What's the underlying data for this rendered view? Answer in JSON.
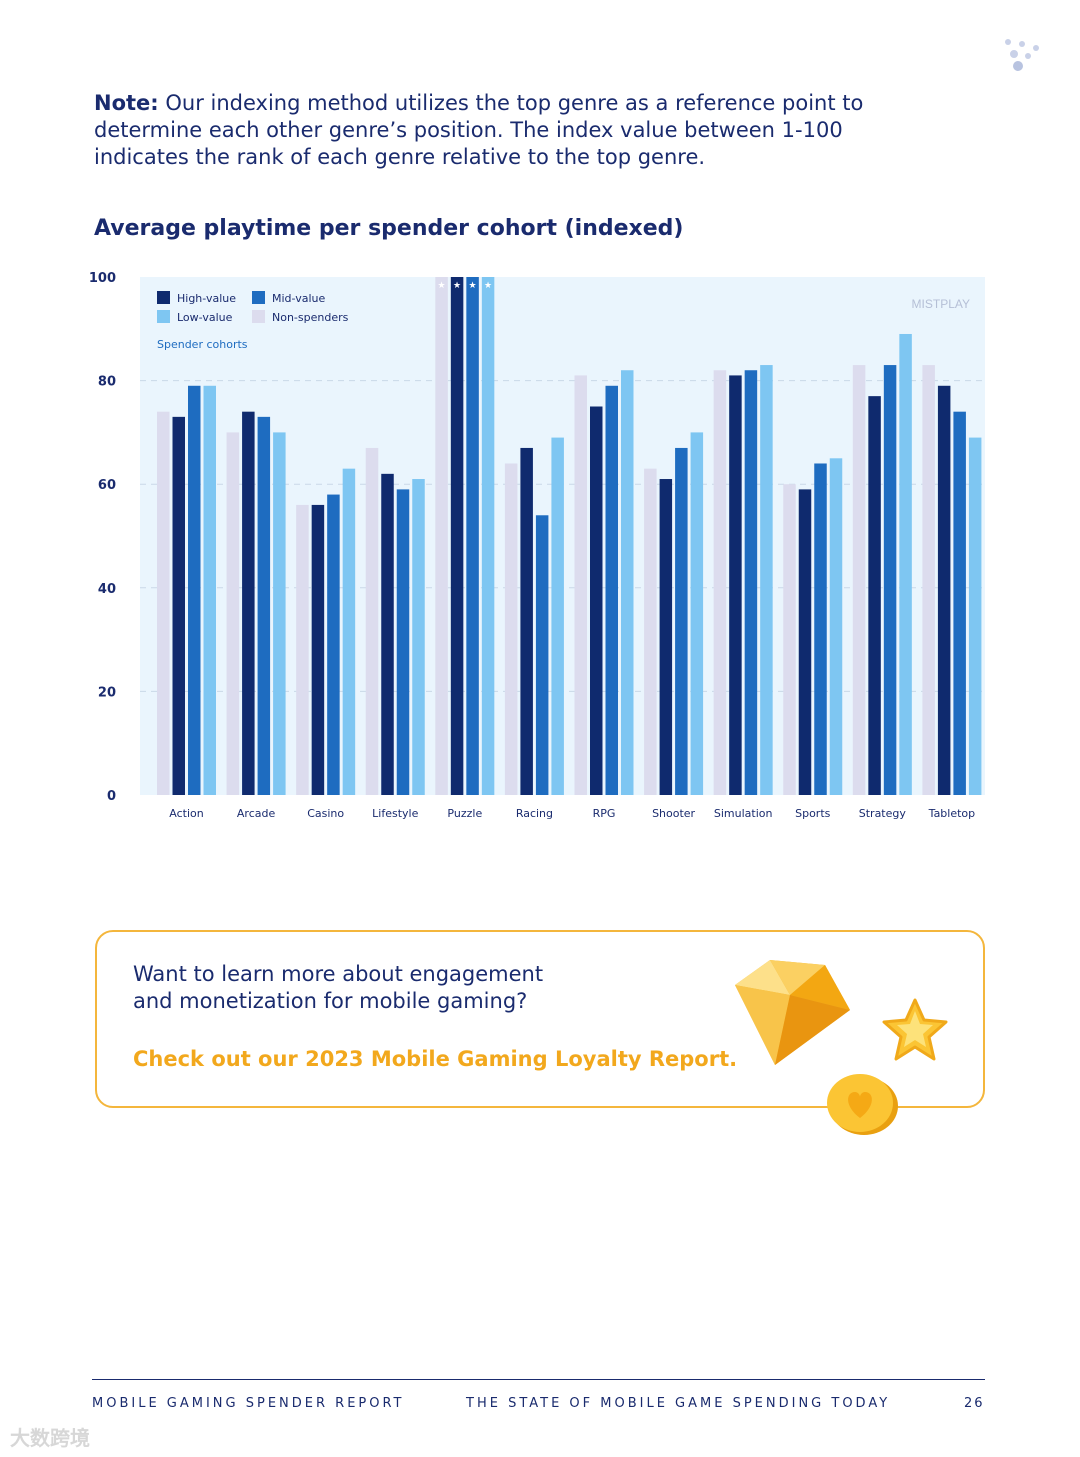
{
  "note": {
    "label": "Note:",
    "text": " Our indexing method utilizes the top genre as a reference point to determine each other genre’s position. The index value between 1-100 indicates the rank of each genre relative to the top genre."
  },
  "chart_title": "Average playtime per spender cohort (indexed)",
  "chart_data": {
    "type": "bar",
    "title": "Average playtime per spender cohort (indexed)",
    "xlabel": "",
    "ylabel": "",
    "ylim": [
      0,
      100
    ],
    "yticks": [
      "0",
      "20",
      "40",
      "60",
      "80",
      "100"
    ],
    "categories": [
      "Action",
      "Arcade",
      "Casino",
      "Lifestyle",
      "Puzzle",
      "Racing",
      "RPG",
      "Shooter",
      "Simulation",
      "Sports",
      "Strategy",
      "Tabletop"
    ],
    "legend_title": "Spender cohorts",
    "legend_position": "top-left",
    "series": [
      {
        "name": "Non-spenders",
        "color": "#dcdcee",
        "values": [
          74,
          70,
          56,
          67,
          100,
          64,
          81,
          63,
          82,
          60,
          83,
          83
        ]
      },
      {
        "name": "High-value",
        "color": "#0f2a6e",
        "values": [
          73,
          74,
          56,
          62,
          100,
          67,
          75,
          61,
          81,
          59,
          77,
          79
        ]
      },
      {
        "name": "Mid-value",
        "color": "#1e6cc0",
        "values": [
          79,
          73,
          58,
          59,
          100,
          54,
          79,
          67,
          82,
          64,
          83,
          74
        ]
      },
      {
        "name": "Low-value",
        "color": "#7ec6f2",
        "values": [
          79,
          70,
          63,
          61,
          100,
          69,
          82,
          70,
          83,
          65,
          89,
          69
        ]
      }
    ],
    "legend_order": [
      "High-value",
      "Mid-value",
      "Low-value",
      "Non-spenders"
    ],
    "watermark": "MISTPLAY",
    "top_marker": "★"
  },
  "cta": {
    "line1": "Want to learn more about engagement",
    "line2": "and monetization for mobile gaming?",
    "link": "Check out our 2023 Mobile Gaming Loyalty Report."
  },
  "footer": {
    "left": "MOBILE GAMING SPENDER REPORT",
    "middle": "THE STATE OF MOBILE GAME SPENDING TODAY",
    "page": "26"
  },
  "watermark_text": "大数跨境"
}
